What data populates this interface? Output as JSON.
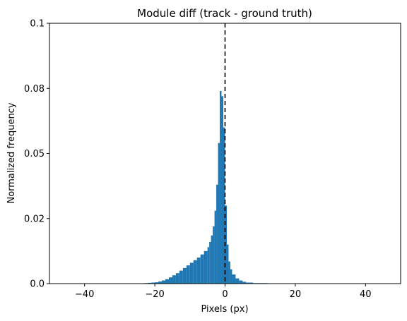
{
  "chart_data": {
    "type": "bar",
    "title": "Module diff (track - ground truth)",
    "xlabel": "Pixels (px)",
    "ylabel": "Normalized frequency",
    "xlim": [
      -50,
      50
    ],
    "ylim": [
      0,
      0.1
    ],
    "xticks": [
      -40,
      -20,
      0,
      20,
      40
    ],
    "xtick_labels": [
      "−40",
      "−20",
      "0",
      "20",
      "40"
    ],
    "yticks": [
      0.0,
      0.025,
      0.05,
      0.075,
      0.1
    ],
    "ytick_labels": [
      "0.0",
      "0.02",
      "0.05",
      "0.08",
      "0.1"
    ],
    "grid": false,
    "bar_color": "#1f77b4",
    "reference_line": {
      "x": 0,
      "style": "dashed",
      "color": "#000000"
    },
    "bins": {
      "x": [
        -23,
        -22,
        -21,
        -20,
        -19,
        -18,
        -17,
        -16,
        -15,
        -14,
        -13,
        -12,
        -11,
        -10,
        -9,
        -8,
        -7,
        -6,
        -5,
        -4.5,
        -4,
        -3.5,
        -3,
        -2.5,
        -2,
        -1.5,
        -1,
        -0.5,
        0,
        0.5,
        1,
        1.5,
        2,
        3,
        4,
        5,
        6,
        8,
        12
      ],
      "width": [
        1,
        1,
        1,
        1,
        1,
        1,
        1,
        1,
        1,
        1,
        1,
        1,
        1,
        1,
        1,
        1,
        1,
        1,
        0.5,
        0.5,
        0.5,
        0.5,
        0.5,
        0.5,
        0.5,
        0.5,
        0.5,
        0.5,
        0.5,
        0.5,
        0.5,
        0.5,
        1,
        1,
        1,
        1,
        2,
        4,
        4
      ],
      "values": [
        0.0002,
        0.0003,
        0.0004,
        0.0005,
        0.0008,
        0.0012,
        0.0017,
        0.0024,
        0.0032,
        0.004,
        0.005,
        0.006,
        0.007,
        0.008,
        0.009,
        0.01,
        0.0112,
        0.0125,
        0.014,
        0.016,
        0.0185,
        0.022,
        0.028,
        0.038,
        0.054,
        0.074,
        0.072,
        0.06,
        0.03,
        0.015,
        0.0085,
        0.0055,
        0.0035,
        0.002,
        0.0012,
        0.0007,
        0.0004,
        0.0002,
        0.0001
      ]
    }
  }
}
